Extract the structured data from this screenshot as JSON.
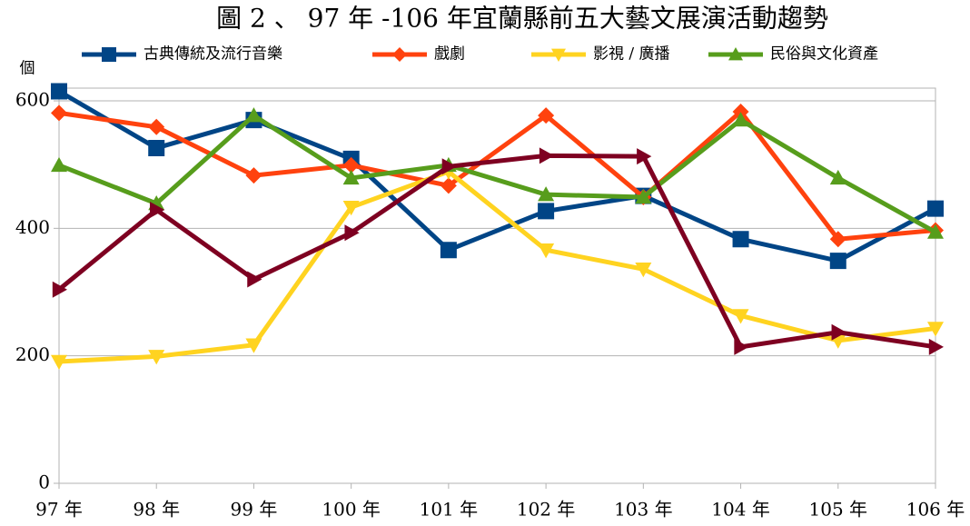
{
  "chart_data": {
    "type": "line",
    "title": "圖 2 、 97 年 -106 年宜蘭縣前五大藝文展演活動趨勢",
    "y_label": "個",
    "categories": [
      "97 年",
      "98 年",
      "99 年",
      "100 年",
      "101 年",
      "102 年",
      "103 年",
      "104 年",
      "105 年",
      "106 年"
    ],
    "series": [
      {
        "name": "古典傳統及流行音樂",
        "color": "#004586",
        "marker": "square",
        "values": [
          615,
          526,
          570,
          509,
          366,
          427,
          451,
          383,
          349,
          431
        ]
      },
      {
        "name": "戲劇",
        "color": "#ff420e",
        "marker": "diamond",
        "values": [
          581,
          559,
          483,
          499,
          467,
          577,
          449,
          583,
          383,
          397
        ]
      },
      {
        "name": "影視 / 廣播",
        "color": "#ffd320",
        "marker": "triangle-down",
        "values": [
          191,
          199,
          217,
          433,
          489,
          366,
          336,
          263,
          224,
          243
        ]
      },
      {
        "name": "民俗與文化資產",
        "color": "#579d1c",
        "marker": "triangle-up",
        "values": [
          499,
          439,
          577,
          479,
          499,
          453,
          449,
          570,
          479,
          394
        ]
      },
      {
        "color": "#7e0021",
        "marker": "triangle-right",
        "values": [
          304,
          429,
          320,
          393,
          497,
          514,
          513,
          214,
          237,
          214
        ]
      }
    ],
    "ylim": [
      0,
      620
    ],
    "yticks": [
      0,
      200,
      400,
      600
    ],
    "grid": true,
    "legend": "top"
  }
}
